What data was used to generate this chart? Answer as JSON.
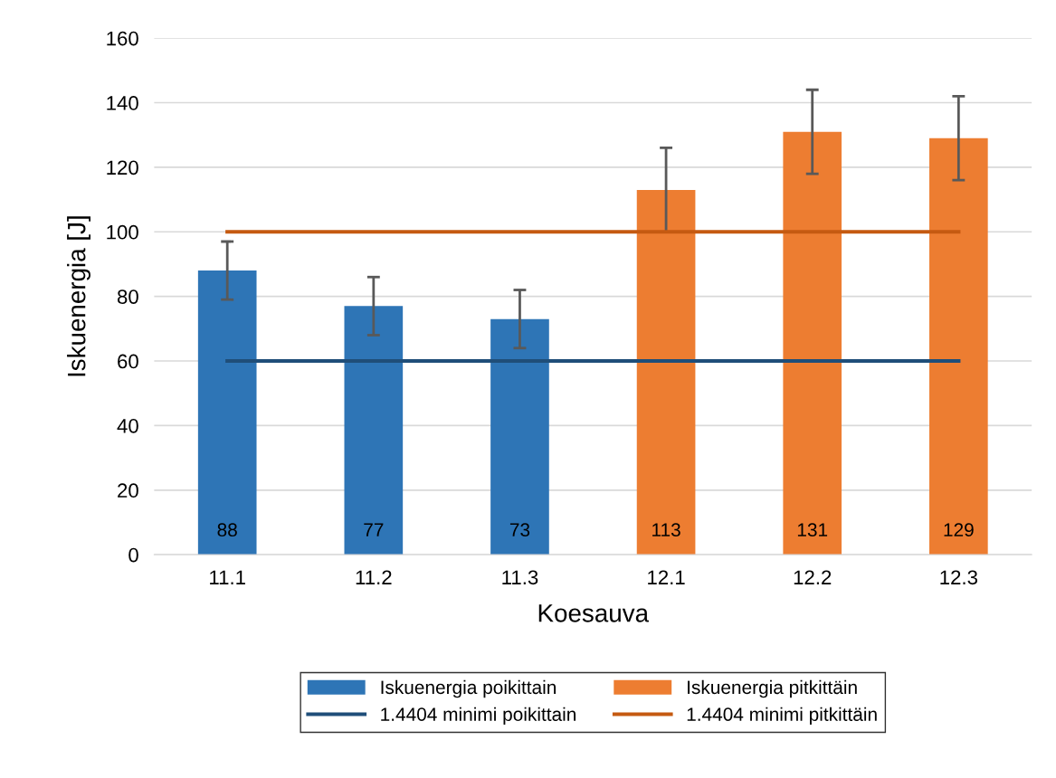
{
  "chart_data": {
    "type": "bar",
    "xlabel": "Koesauva",
    "ylabel": "Iskuenergia [J]",
    "categories": [
      "11.1",
      "11.2",
      "11.3",
      "12.1",
      "12.2",
      "12.3"
    ],
    "series": [
      {
        "name": "Iskuenergia poikittain",
        "color": "#2e75b6",
        "values": [
          88,
          77,
          73,
          null,
          null,
          null
        ],
        "errors": [
          9,
          9,
          9,
          null,
          null,
          null
        ],
        "value_labels": [
          "88",
          "77",
          "73",
          null,
          null,
          null
        ]
      },
      {
        "name": "Iskuenergia pitkittäin",
        "color": "#ed7d31",
        "values": [
          null,
          null,
          null,
          113,
          131,
          129
        ],
        "errors": [
          null,
          null,
          null,
          13,
          13,
          13
        ],
        "value_labels": [
          null,
          null,
          null,
          "113",
          "131",
          "129"
        ]
      },
      {
        "name": "1.4404 minimi poikittain",
        "type": "line",
        "color": "#1f4e79",
        "values": [
          60,
          60,
          60,
          60,
          60,
          60
        ]
      },
      {
        "name": "1.4404 minimi pitkittäin",
        "type": "line",
        "color": "#c55a11",
        "values": [
          100,
          100,
          100,
          100,
          100,
          100
        ]
      }
    ],
    "ylim": [
      0,
      160
    ],
    "yticks": [
      0,
      20,
      40,
      60,
      80,
      100,
      120,
      140,
      160
    ],
    "grid": "y",
    "legend": "bottom",
    "marker": "none",
    "line_style": "solid"
  }
}
